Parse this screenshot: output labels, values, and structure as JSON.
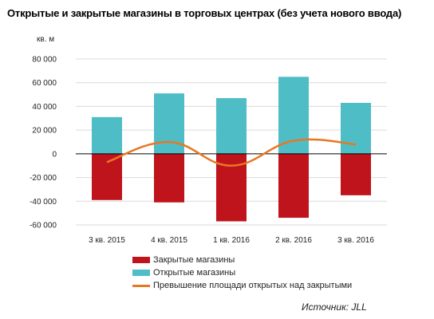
{
  "chart_data": {
    "type": "bar",
    "title": "Открытые и закрытые магазины в торговых центрах (без учета нового ввода)",
    "ylabel": "кв. м",
    "categories": [
      "3 кв. 2015",
      "4 кв. 2015",
      "1 кв. 2016",
      "2 кв. 2016",
      "3 кв. 2016"
    ],
    "ylim": [
      -60000,
      80000
    ],
    "yticks": [
      "80 000",
      "60 000",
      "40 000",
      "20 000",
      "0",
      "-20 000",
      "-40 000",
      "-60 000"
    ],
    "ytick_values": [
      80000,
      60000,
      40000,
      20000,
      0,
      -20000,
      -40000,
      -60000
    ],
    "grid": true,
    "series": [
      {
        "name": "Закрытые магазины",
        "type": "bar",
        "color": "#c0141c",
        "values": [
          -39000,
          -41000,
          -57000,
          -54000,
          -35000
        ]
      },
      {
        "name": "Открытые магазины",
        "type": "bar",
        "color": "#4fbdc6",
        "values": [
          31000,
          51000,
          47000,
          65000,
          43000
        ]
      },
      {
        "name": "Превышение площади открытых над закрытыми",
        "type": "line",
        "color": "#e87722",
        "values": [
          -7000,
          10000,
          -10000,
          11000,
          8000
        ]
      }
    ],
    "legend_position": "bottom"
  },
  "source": "Источник: JLL"
}
